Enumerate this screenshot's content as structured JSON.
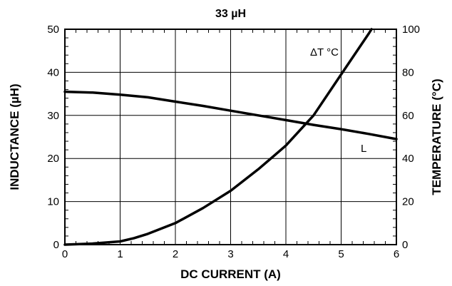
{
  "chart_data": {
    "type": "line",
    "title": "33 µH",
    "xlabel": "DC CURRENT (A)",
    "ylabel_left": "INDUCTANCE (µH)",
    "ylabel_right": "TEMPERATURE (°C)",
    "xlim": [
      0,
      6
    ],
    "ylim_left": [
      0,
      50
    ],
    "ylim_right": [
      0,
      100
    ],
    "grid": true,
    "x_ticks": [
      "0",
      "1",
      "2",
      "3",
      "4",
      "5",
      "6"
    ],
    "y_left_ticks": [
      "0",
      "10",
      "20",
      "30",
      "40",
      "50"
    ],
    "y_right_ticks": [
      "0",
      "20",
      "40",
      "60",
      "80",
      "100"
    ],
    "series": [
      {
        "name": "L",
        "axis": "left",
        "x": [
          0,
          0.5,
          1.0,
          1.5,
          2.0,
          2.5,
          3.0,
          3.5,
          4.0,
          4.5,
          5.0,
          5.5,
          6.0
        ],
        "y": [
          35.5,
          35.3,
          34.8,
          34.2,
          33.2,
          32.2,
          31.1,
          30.0,
          28.9,
          27.8,
          26.8,
          25.7,
          24.5
        ]
      },
      {
        "name": "ΔT °C",
        "axis": "right",
        "x": [
          0,
          0.5,
          1.0,
          1.25,
          1.5,
          2.0,
          2.5,
          3.0,
          3.5,
          4.0,
          4.5,
          5.0,
          5.5,
          5.55
        ],
        "y": [
          0,
          0.5,
          1.5,
          3,
          5,
          10,
          17,
          25,
          35,
          46,
          60,
          79,
          98,
          100
        ]
      }
    ],
    "series_labels": {
      "L": "L",
      "dT": "ΔT °C"
    }
  }
}
